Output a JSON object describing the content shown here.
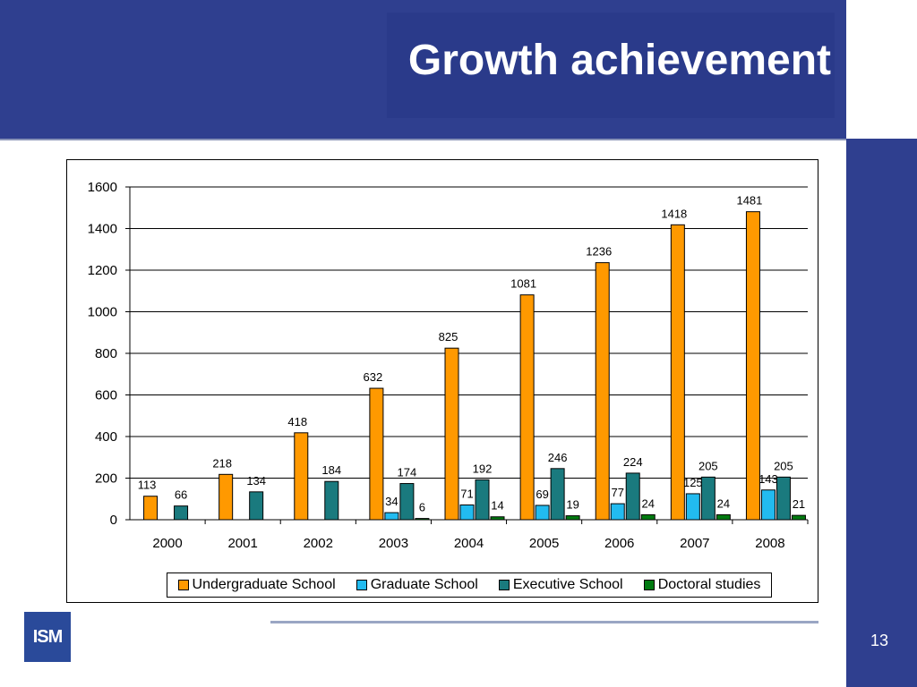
{
  "slide": {
    "title": "Growth achievement",
    "logo_text": "ISM",
    "page_number": "13"
  },
  "colors": {
    "band": "#2f3f8f",
    "undergrad": "#ff9900",
    "graduate": "#22bbf0",
    "executive": "#1a7a7e",
    "doctoral": "#007a10"
  },
  "chart_data": {
    "type": "bar",
    "categories": [
      "2000",
      "2001",
      "2002",
      "2003",
      "2004",
      "2005",
      "2006",
      "2007",
      "2008"
    ],
    "series": [
      {
        "name": "Undergraduate School",
        "values": [
          113,
          218,
          418,
          632,
          825,
          1081,
          1236,
          1418,
          1481
        ]
      },
      {
        "name": "Graduate School",
        "values": [
          null,
          null,
          null,
          34,
          71,
          69,
          77,
          125,
          143
        ]
      },
      {
        "name": "Executive School",
        "values": [
          66,
          134,
          184,
          174,
          192,
          246,
          224,
          205,
          205
        ]
      },
      {
        "name": "Doctoral studies",
        "values": [
          null,
          null,
          null,
          6,
          14,
          19,
          24,
          24,
          21
        ]
      }
    ],
    "yticks": [
      "0",
      "200",
      "400",
      "600",
      "800",
      "1000",
      "1200",
      "1400",
      "1600"
    ],
    "ylim": [
      0,
      1600
    ],
    "grid": true,
    "legend": "bottom"
  }
}
